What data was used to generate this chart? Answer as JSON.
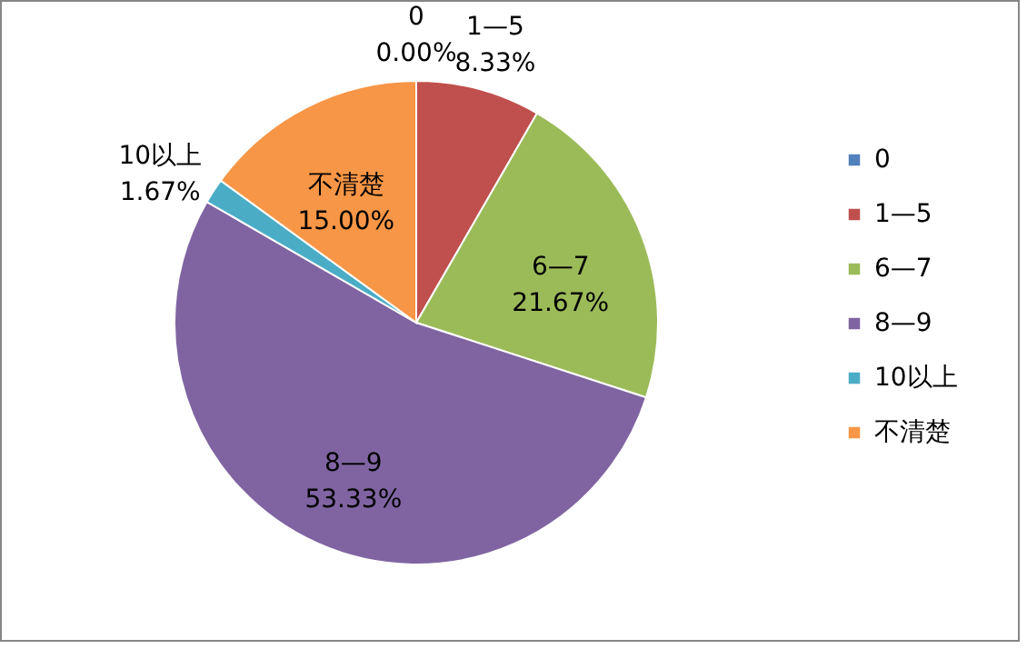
{
  "chart_data": {
    "type": "pie",
    "categories": [
      "0",
      "1—5",
      "6—7",
      "8—9",
      "10以上",
      "不清楚"
    ],
    "values": [
      0,
      8.33,
      21.67,
      53.33,
      1.67,
      15.0
    ],
    "value_labels": [
      "0.00%",
      "8.33%",
      "21.67%",
      "53.33%",
      "1.67%",
      "15.00%"
    ],
    "colors": [
      "#4f81bd",
      "#c0504d",
      "#9bbb59",
      "#8064a2",
      "#4bacc6",
      "#f79646"
    ],
    "legend": "right"
  }
}
